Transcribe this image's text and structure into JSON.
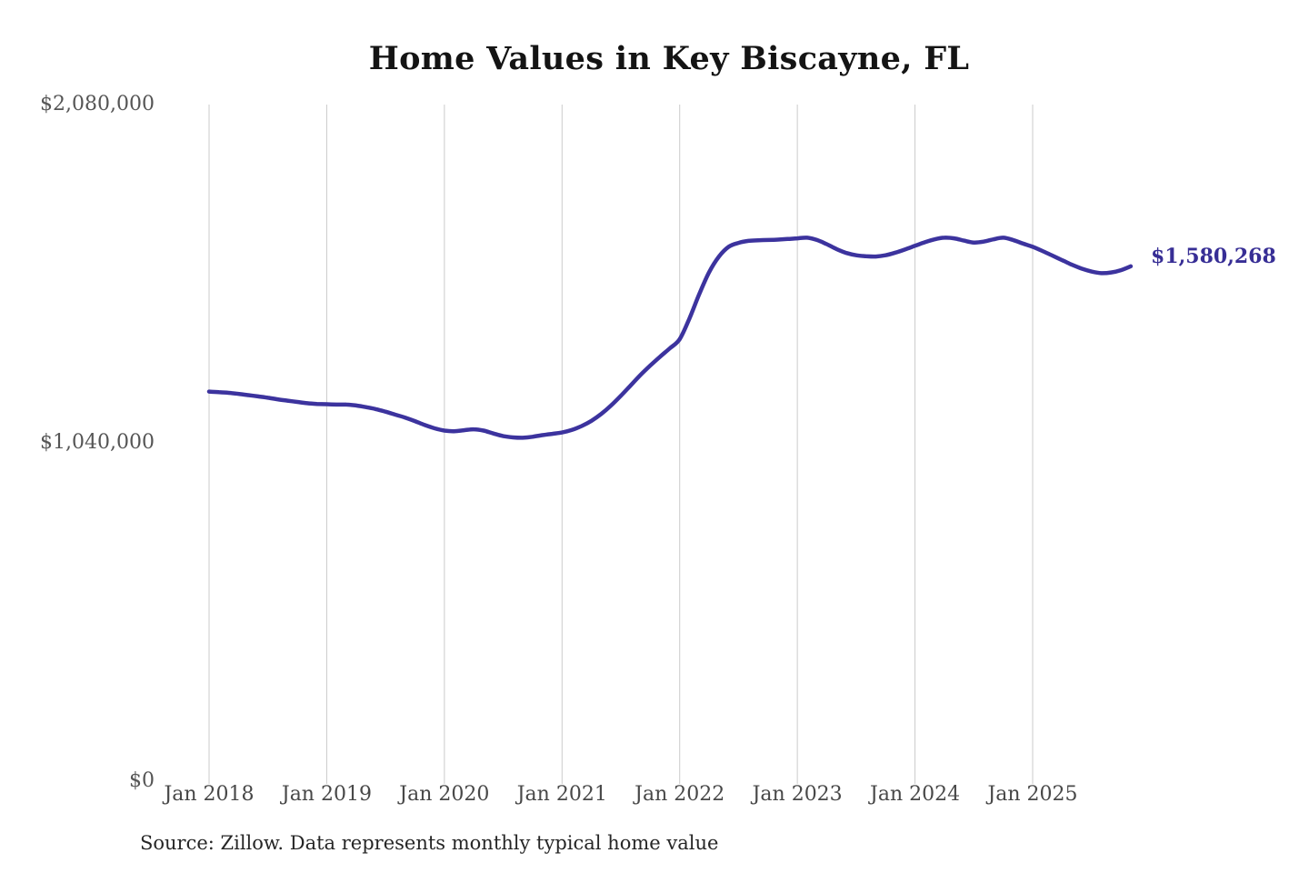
{
  "title": "Home Values in Key Biscayne, FL",
  "source_note": "Source: Zillow. Data represents monthly typical home value",
  "colors": {
    "line": "#3c339e",
    "annotation_text": "#372e95",
    "gridline": "#cbcbcb",
    "y_tick_text": "#555555",
    "x_tick_text": "#484848",
    "title_text": "#141414",
    "source_text": "#262626",
    "background": "#ffffff"
  },
  "chart_data": {
    "type": "line",
    "title": "Home Values in Key Biscayne, FL",
    "xlabel": "",
    "ylabel": "",
    "ylim": [
      0,
      2080000
    ],
    "y_ticks": [
      0,
      1040000,
      2080000
    ],
    "y_tick_labels": [
      "$0",
      "$1,040,000",
      "$2,080,000"
    ],
    "x_tick_labels": [
      "Jan 2018",
      "Jan 2019",
      "Jan 2020",
      "Jan 2021",
      "Jan 2022",
      "Jan 2023",
      "Jan 2024",
      "Jan 2025"
    ],
    "grid": "vertical-only",
    "legend": "none",
    "annotation": {
      "text": "$1,580,268",
      "value": 1580268,
      "position": "end-of-line"
    },
    "start_month": "2018-01",
    "end_month": "2025-11",
    "series": [
      {
        "name": "Monthly typical home value",
        "color": "#3c339e",
        "values": [
          1195000,
          1193000,
          1191000,
          1188000,
          1184000,
          1180000,
          1176000,
          1171000,
          1167000,
          1163000,
          1159000,
          1157000,
          1156000,
          1155000,
          1155000,
          1152000,
          1147000,
          1141000,
          1133000,
          1124000,
          1115000,
          1104000,
          1092000,
          1082000,
          1075000,
          1073000,
          1076000,
          1079000,
          1075000,
          1066000,
          1058000,
          1054000,
          1053000,
          1056000,
          1061000,
          1065000,
          1069000,
          1077000,
          1089000,
          1105000,
          1126000,
          1152000,
          1182000,
          1214000,
          1246000,
          1275000,
          1302000,
          1328000,
          1356000,
          1420000,
          1495000,
          1562000,
          1610000,
          1640000,
          1652000,
          1658000,
          1660000,
          1661000,
          1662000,
          1664000,
          1666000,
          1668000,
          1661000,
          1648000,
          1633000,
          1621000,
          1614000,
          1611000,
          1610000,
          1614000,
          1622000,
          1632000,
          1643000,
          1654000,
          1663000,
          1668000,
          1666000,
          1659000,
          1653000,
          1656000,
          1663000,
          1668000,
          1661000,
          1650000,
          1640000,
          1627000,
          1613000,
          1599000,
          1585000,
          1573000,
          1564000,
          1559000,
          1561000,
          1568000,
          1580268
        ]
      }
    ]
  }
}
